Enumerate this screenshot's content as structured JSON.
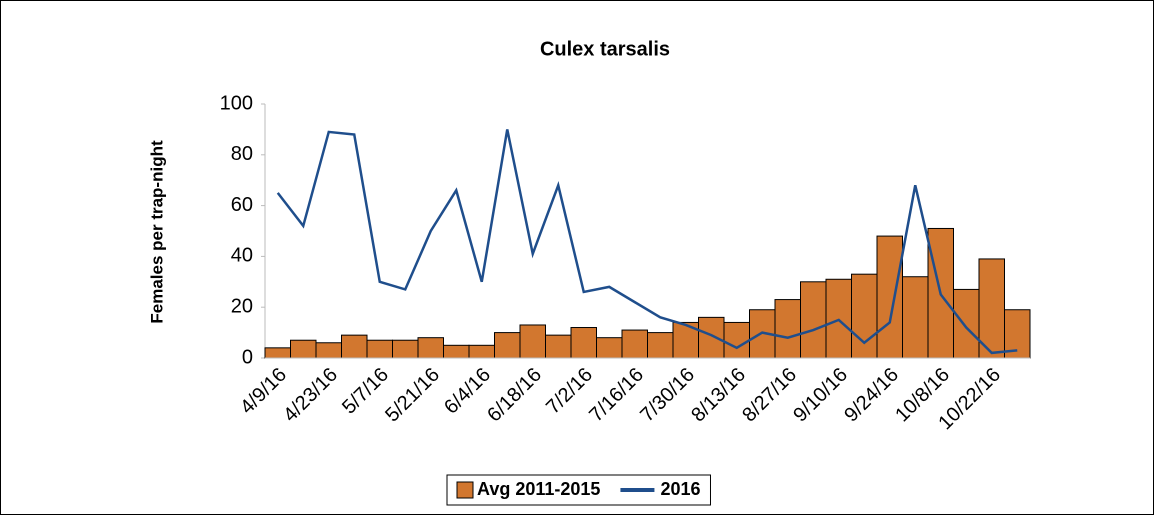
{
  "chart_data": {
    "type": "bar_line",
    "title": "Culex tarsalis",
    "y_label": "Females per trap-night",
    "categories": [
      "4/9/16",
      null,
      "4/23/16",
      null,
      "5/7/16",
      null,
      "5/21/16",
      null,
      "6/4/16",
      null,
      "6/18/16",
      null,
      "7/2/16",
      null,
      "7/16/16",
      null,
      "7/30/16",
      null,
      "8/13/16",
      null,
      "8/27/16",
      null,
      "9/10/16",
      null,
      "9/24/16",
      null,
      "10/8/16",
      null,
      "10/22/16",
      null
    ],
    "series": [
      {
        "name": "Avg 2011-2015",
        "type": "bar",
        "color": "#d2772f",
        "values": [
          4,
          7,
          6,
          9,
          7,
          7,
          8,
          5,
          5,
          10,
          13,
          9,
          12,
          8,
          11,
          10,
          14,
          16,
          14,
          19,
          23,
          30,
          31,
          33,
          48,
          32,
          51,
          27,
          39,
          19
        ]
      },
      {
        "name": "2016",
        "type": "line",
        "color": "#1f4e8c",
        "values": [
          65,
          52,
          89,
          88,
          30,
          27,
          50,
          66,
          30,
          90,
          41,
          68,
          26,
          28,
          22,
          16,
          13,
          9,
          4,
          10,
          8,
          11,
          15,
          6,
          14,
          68,
          25,
          12,
          2,
          3
        ]
      }
    ],
    "ylim": [
      0,
      100
    ],
    "yticks": [
      0,
      20,
      40,
      60,
      80,
      100
    ],
    "grid": false,
    "legend": "bottom"
  }
}
